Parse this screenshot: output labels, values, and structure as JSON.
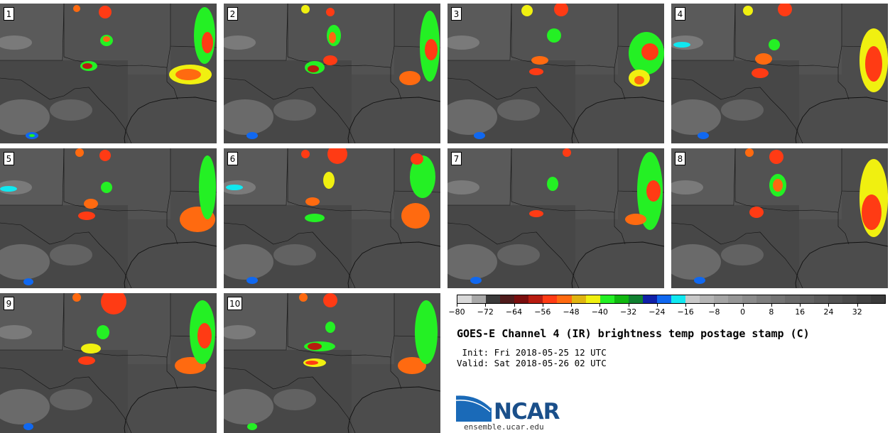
{
  "panels": [
    {
      "label": "1"
    },
    {
      "label": "2"
    },
    {
      "label": "3"
    },
    {
      "label": "4"
    },
    {
      "label": "5"
    },
    {
      "label": "6"
    },
    {
      "label": "7"
    },
    {
      "label": "8"
    },
    {
      "label": "9"
    },
    {
      "label": "10"
    }
  ],
  "colorbar": {
    "colors": [
      "#d8d8d8",
      "#a8a8a8",
      "#3a3a3a",
      "#4f1c1c",
      "#7a0e0e",
      "#b81c10",
      "#ff3b14",
      "#ff6a10",
      "#e0b410",
      "#f0f010",
      "#24f024",
      "#10b810",
      "#108030",
      "#1020a8",
      "#1068f0",
      "#10e8f0",
      "#c8c8c8",
      "#b4b4b4",
      "#a4a4a4",
      "#969696",
      "#8a8a8a",
      "#7e7e7e",
      "#747474",
      "#6a6a6a",
      "#626262",
      "#5a5a5a",
      "#525252",
      "#4a4a4a",
      "#424242",
      "#3a3a3a"
    ],
    "tick_values": [
      "−80",
      "−72",
      "−64",
      "−56",
      "−48",
      "−40",
      "−32",
      "−24",
      "−16",
      "−8",
      "0",
      "8",
      "16",
      "24",
      "32"
    ]
  },
  "title": "GOES-E Channel 4 (IR) brightness temp postage stamp (C)",
  "init": " Init: Fri 2018-05-25 12 UTC",
  "valid": "Valid: Sat 2018-05-26 02 UTC",
  "logo_text": "NCAR",
  "site": "ensemble.ucar.edu"
}
